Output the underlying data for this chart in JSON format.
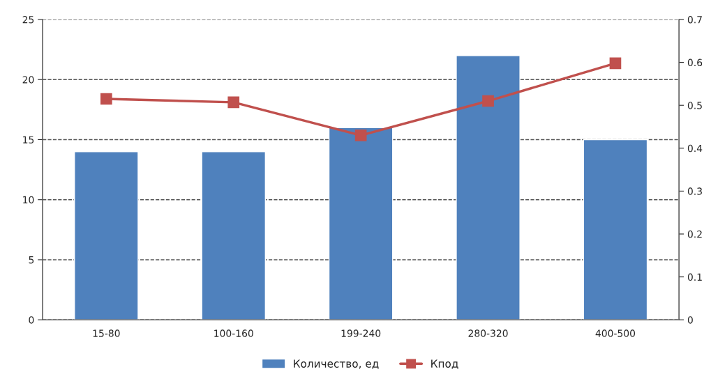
{
  "chart_data": {
    "type": "bar",
    "categories": [
      "15-80",
      "100-160",
      "199-240",
      "280-320",
      "400-500"
    ],
    "series": [
      {
        "name": "Количество, ед",
        "color": "#4f81bd",
        "values": [
          14,
          14,
          16,
          22,
          15
        ]
      },
      {
        "name": "Кпод",
        "type": "line",
        "axis": "y2",
        "color": "#c0504d",
        "marker": "square",
        "values": [
          0.515,
          0.507,
          0.43,
          0.51,
          0.598
        ]
      }
    ],
    "ylim": [
      0,
      25
    ],
    "yticks": [
      0,
      5,
      10,
      15,
      20,
      25
    ],
    "y2lim": [
      0,
      0.7
    ],
    "y2ticks": [
      0,
      0.1,
      0.2,
      0.3,
      0.4,
      0.5,
      0.6,
      0.7
    ],
    "grid": "y",
    "legend": "bottom"
  }
}
